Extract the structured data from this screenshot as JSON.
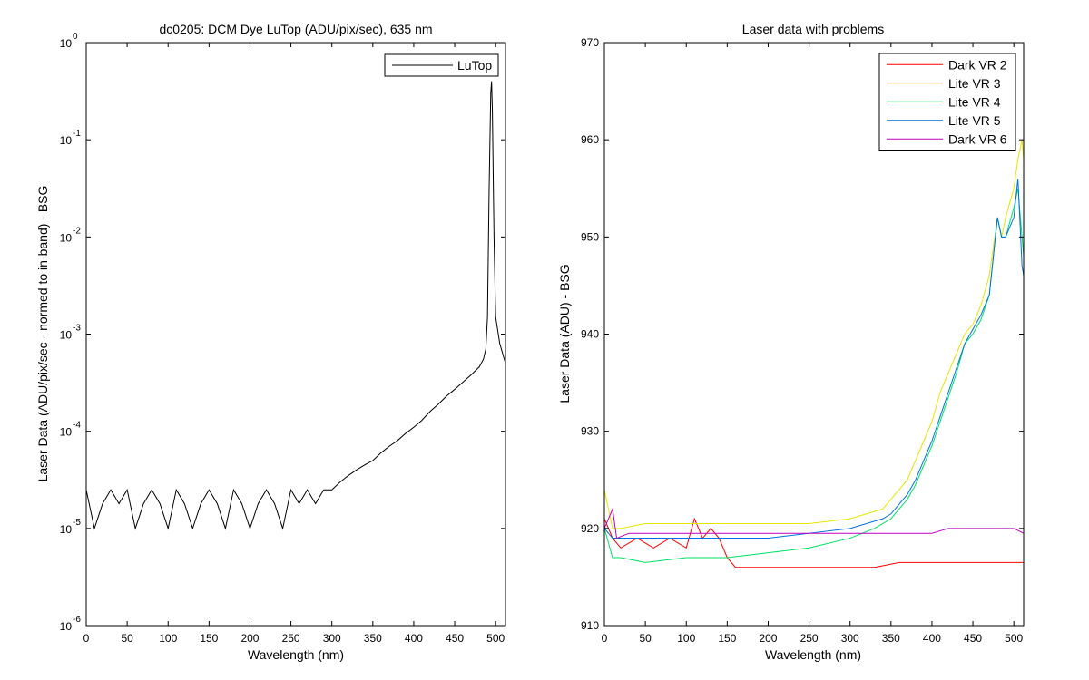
{
  "chart_data": [
    {
      "type": "line",
      "title": "dc0205: DCM Dye  LuTop (ADU/pix/sec), 635 nm",
      "xlabel": "Wavelength (nm)",
      "ylabel": "Laser Data (ADU/pix/sec - normed to in-band) - BSG",
      "xlim": [
        0,
        512
      ],
      "ylim": [
        1e-06,
        1
      ],
      "yscale": "log",
      "xticks": [
        "0",
        "50",
        "100",
        "150",
        "200",
        "250",
        "300",
        "350",
        "400",
        "450",
        "500"
      ],
      "yticks": [
        {
          "base": "10",
          "exp": "-6"
        },
        {
          "base": "10",
          "exp": "-5"
        },
        {
          "base": "10",
          "exp": "-4"
        },
        {
          "base": "10",
          "exp": "-3"
        },
        {
          "base": "10",
          "exp": "-2"
        },
        {
          "base": "10",
          "exp": "-1"
        },
        {
          "base": "10",
          "exp": "0"
        }
      ],
      "grid": false,
      "legend_position": "top-right",
      "series": [
        {
          "name": "LuTop",
          "color": "#000000",
          "points": [
            [
              0,
              2.5e-05
            ],
            [
              10,
              1e-05
            ],
            [
              20,
              1.8e-05
            ],
            [
              30,
              2.5e-05
            ],
            [
              40,
              1.8e-05
            ],
            [
              50,
              2.5e-05
            ],
            [
              60,
              1e-05
            ],
            [
              70,
              1.8e-05
            ],
            [
              80,
              2.5e-05
            ],
            [
              90,
              1.8e-05
            ],
            [
              100,
              1e-05
            ],
            [
              110,
              2.5e-05
            ],
            [
              120,
              1.8e-05
            ],
            [
              130,
              1e-05
            ],
            [
              140,
              1.8e-05
            ],
            [
              150,
              2.5e-05
            ],
            [
              160,
              1.8e-05
            ],
            [
              170,
              1e-05
            ],
            [
              180,
              2.5e-05
            ],
            [
              190,
              1.8e-05
            ],
            [
              200,
              1e-05
            ],
            [
              210,
              1.8e-05
            ],
            [
              220,
              2.5e-05
            ],
            [
              230,
              1.8e-05
            ],
            [
              240,
              1e-05
            ],
            [
              250,
              2.5e-05
            ],
            [
              260,
              1.8e-05
            ],
            [
              270,
              2.5e-05
            ],
            [
              280,
              1.8e-05
            ],
            [
              290,
              2.5e-05
            ],
            [
              300,
              2.5e-05
            ],
            [
              310,
              3e-05
            ],
            [
              320,
              3.5e-05
            ],
            [
              330,
              4e-05
            ],
            [
              340,
              4.5e-05
            ],
            [
              350,
              5e-05
            ],
            [
              360,
              6e-05
            ],
            [
              370,
              7e-05
            ],
            [
              380,
              8e-05
            ],
            [
              390,
              9.5e-05
            ],
            [
              400,
              0.00011
            ],
            [
              410,
              0.00013
            ],
            [
              420,
              0.00016
            ],
            [
              430,
              0.00019
            ],
            [
              440,
              0.00023
            ],
            [
              450,
              0.00027
            ],
            [
              460,
              0.00032
            ],
            [
              470,
              0.00038
            ],
            [
              480,
              0.00046
            ],
            [
              485,
              0.00055
            ],
            [
              488,
              0.0007
            ],
            [
              490,
              0.0015
            ],
            [
              492,
              0.03
            ],
            [
              494,
              0.3
            ],
            [
              495,
              0.4
            ],
            [
              496,
              0.2
            ],
            [
              498,
              0.01
            ],
            [
              500,
              0.0015
            ],
            [
              505,
              0.0008
            ],
            [
              512,
              0.0005
            ]
          ]
        }
      ]
    },
    {
      "type": "line",
      "title": "Laser data with problems",
      "xlabel": "Wavelength (nm)",
      "ylabel": "Laser Data (ADU) - BSG",
      "xlim": [
        0,
        512
      ],
      "ylim": [
        910,
        970
      ],
      "xticks": [
        "0",
        "50",
        "100",
        "150",
        "200",
        "250",
        "300",
        "350",
        "400",
        "450",
        "500"
      ],
      "yticks": [
        "910",
        "920",
        "930",
        "940",
        "950",
        "960",
        "970"
      ],
      "grid": false,
      "legend_position": "top-right",
      "series": [
        {
          "name": "Dark VR 2",
          "color": "#ff0000",
          "points": [
            [
              0,
              921
            ],
            [
              10,
              919
            ],
            [
              20,
              918
            ],
            [
              40,
              919
            ],
            [
              60,
              918
            ],
            [
              80,
              919
            ],
            [
              100,
              918
            ],
            [
              110,
              921
            ],
            [
              120,
              919
            ],
            [
              130,
              920
            ],
            [
              140,
              919
            ],
            [
              150,
              917
            ],
            [
              160,
              916
            ],
            [
              180,
              916
            ],
            [
              200,
              916
            ],
            [
              220,
              916
            ],
            [
              250,
              916
            ],
            [
              280,
              916
            ],
            [
              300,
              916
            ],
            [
              330,
              916
            ],
            [
              360,
              916.5
            ],
            [
              400,
              916.5
            ],
            [
              440,
              916.5
            ],
            [
              480,
              916.5
            ],
            [
              512,
              916.5
            ]
          ]
        },
        {
          "name": "Lite VR 3",
          "color": "#e6e600",
          "points": [
            [
              0,
              924
            ],
            [
              10,
              920
            ],
            [
              20,
              920
            ],
            [
              50,
              920.5
            ],
            [
              100,
              920.5
            ],
            [
              150,
              920.5
            ],
            [
              200,
              920.5
            ],
            [
              250,
              920.5
            ],
            [
              300,
              921
            ],
            [
              320,
              921.5
            ],
            [
              340,
              922
            ],
            [
              350,
              923
            ],
            [
              360,
              924
            ],
            [
              370,
              925
            ],
            [
              380,
              927
            ],
            [
              390,
              929
            ],
            [
              400,
              931
            ],
            [
              410,
              934
            ],
            [
              420,
              936
            ],
            [
              430,
              938
            ],
            [
              440,
              940
            ],
            [
              450,
              941
            ],
            [
              460,
              943
            ],
            [
              470,
              946
            ],
            [
              480,
              952
            ],
            [
              485,
              950
            ],
            [
              490,
              952
            ],
            [
              500,
              955
            ],
            [
              505,
              958
            ],
            [
              510,
              960
            ],
            [
              512,
              958
            ]
          ]
        },
        {
          "name": "Lite VR 4",
          "color": "#00e060",
          "points": [
            [
              0,
              920
            ],
            [
              10,
              917
            ],
            [
              20,
              917
            ],
            [
              50,
              916.5
            ],
            [
              100,
              917
            ],
            [
              150,
              917
            ],
            [
              200,
              917.5
            ],
            [
              250,
              918
            ],
            [
              300,
              919
            ],
            [
              330,
              920
            ],
            [
              350,
              921
            ],
            [
              360,
              922
            ],
            [
              370,
              923
            ],
            [
              380,
              924.5
            ],
            [
              390,
              926.5
            ],
            [
              400,
              928.5
            ],
            [
              410,
              931
            ],
            [
              420,
              933.5
            ],
            [
              430,
              936
            ],
            [
              440,
              939
            ],
            [
              450,
              940
            ],
            [
              460,
              941.5
            ],
            [
              470,
              944
            ],
            [
              480,
              952
            ],
            [
              485,
              950
            ],
            [
              490,
              950
            ],
            [
              500,
              953
            ],
            [
              505,
              955
            ],
            [
              510,
              950
            ],
            [
              512,
              948
            ]
          ]
        },
        {
          "name": "Lite VR 5",
          "color": "#0070e0",
          "points": [
            [
              0,
              920
            ],
            [
              10,
              919
            ],
            [
              20,
              919
            ],
            [
              50,
              919
            ],
            [
              100,
              919
            ],
            [
              150,
              919
            ],
            [
              200,
              919
            ],
            [
              250,
              919.5
            ],
            [
              300,
              920
            ],
            [
              320,
              920.5
            ],
            [
              340,
              921
            ],
            [
              350,
              921.5
            ],
            [
              360,
              922.5
            ],
            [
              370,
              923.5
            ],
            [
              380,
              925
            ],
            [
              390,
              927
            ],
            [
              400,
              929
            ],
            [
              410,
              931.5
            ],
            [
              420,
              934
            ],
            [
              430,
              936.5
            ],
            [
              440,
              939
            ],
            [
              450,
              940.5
            ],
            [
              460,
              942
            ],
            [
              470,
              944
            ],
            [
              480,
              952
            ],
            [
              485,
              950
            ],
            [
              490,
              950
            ],
            [
              500,
              952
            ],
            [
              505,
              956
            ],
            [
              510,
              947
            ],
            [
              512,
              946
            ]
          ]
        },
        {
          "name": "Dark VR 6",
          "color": "#c000c0",
          "points": [
            [
              0,
              920
            ],
            [
              10,
              922
            ],
            [
              15,
              919
            ],
            [
              30,
              919.5
            ],
            [
              60,
              919.5
            ],
            [
              100,
              919.5
            ],
            [
              150,
              919.5
            ],
            [
              200,
              919.5
            ],
            [
              250,
              919.5
            ],
            [
              300,
              919.5
            ],
            [
              350,
              919.5
            ],
            [
              400,
              919.5
            ],
            [
              420,
              920
            ],
            [
              440,
              920
            ],
            [
              460,
              920
            ],
            [
              480,
              920
            ],
            [
              500,
              920
            ],
            [
              512,
              919.5
            ]
          ]
        }
      ]
    }
  ]
}
